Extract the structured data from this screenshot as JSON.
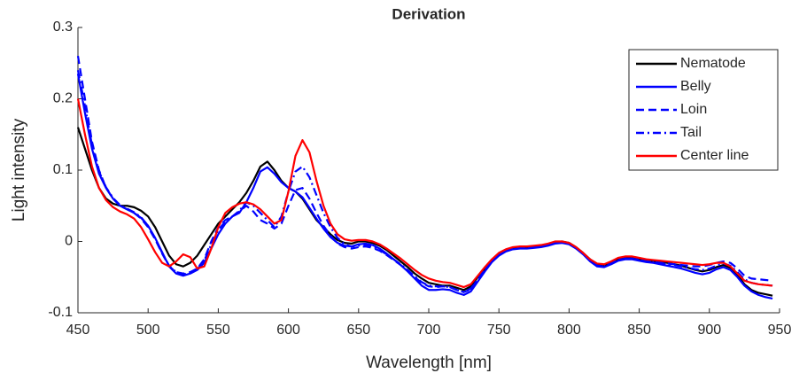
{
  "chart_data": {
    "type": "line",
    "title": "Derivation",
    "x_label": "Wavelength [nm]",
    "y_label": "Light intensity",
    "xlim": [
      450,
      950
    ],
    "xticks": [
      450,
      500,
      550,
      600,
      650,
      700,
      750,
      800,
      850,
      900,
      950
    ],
    "ylim": [
      -0.1,
      0.3
    ],
    "yticks": [
      -0.1,
      0,
      0.1,
      0.2,
      0.3
    ],
    "grid": false,
    "legend": "northeast",
    "x": [
      450,
      455,
      460,
      465,
      470,
      475,
      480,
      485,
      490,
      495,
      500,
      505,
      510,
      515,
      520,
      525,
      530,
      535,
      540,
      545,
      550,
      555,
      560,
      565,
      570,
      575,
      580,
      585,
      590,
      595,
      600,
      605,
      610,
      615,
      620,
      625,
      630,
      635,
      640,
      645,
      650,
      655,
      660,
      665,
      670,
      675,
      680,
      685,
      690,
      695,
      700,
      705,
      710,
      715,
      720,
      725,
      730,
      735,
      740,
      745,
      750,
      755,
      760,
      765,
      770,
      775,
      780,
      785,
      790,
      795,
      800,
      805,
      810,
      815,
      820,
      825,
      830,
      835,
      840,
      845,
      850,
      855,
      860,
      865,
      870,
      875,
      880,
      885,
      890,
      895,
      900,
      905,
      910,
      915,
      920,
      925,
      930,
      935,
      940,
      945
    ],
    "series": [
      {
        "name": "Nematode",
        "color": "#000000",
        "line_style": "solid",
        "values": [
          0.16,
          0.13,
          0.1,
          0.075,
          0.06,
          0.053,
          0.05,
          0.05,
          0.048,
          0.043,
          0.035,
          0.02,
          0.0,
          -0.02,
          -0.032,
          -0.035,
          -0.03,
          -0.02,
          -0.005,
          0.01,
          0.025,
          0.035,
          0.045,
          0.055,
          0.068,
          0.085,
          0.105,
          0.112,
          0.1,
          0.085,
          0.075,
          0.07,
          0.06,
          0.045,
          0.03,
          0.02,
          0.01,
          0.002,
          -0.002,
          -0.003,
          0.0,
          0.0,
          -0.002,
          -0.006,
          -0.012,
          -0.02,
          -0.028,
          -0.036,
          -0.045,
          -0.052,
          -0.058,
          -0.06,
          -0.062,
          -0.062,
          -0.065,
          -0.068,
          -0.063,
          -0.05,
          -0.038,
          -0.027,
          -0.018,
          -0.012,
          -0.009,
          -0.008,
          -0.008,
          -0.007,
          -0.006,
          -0.004,
          -0.001,
          0.0,
          -0.002,
          -0.008,
          -0.016,
          -0.025,
          -0.032,
          -0.034,
          -0.03,
          -0.025,
          -0.023,
          -0.023,
          -0.025,
          -0.027,
          -0.028,
          -0.029,
          -0.03,
          -0.032,
          -0.034,
          -0.037,
          -0.04,
          -0.042,
          -0.04,
          -0.036,
          -0.033,
          -0.037,
          -0.047,
          -0.06,
          -0.068,
          -0.072,
          -0.074,
          -0.076
        ]
      },
      {
        "name": "Belly",
        "color": "#0000ff",
        "line_style": "solid",
        "values": [
          0.235,
          0.18,
          0.13,
          0.095,
          0.075,
          0.06,
          0.05,
          0.045,
          0.04,
          0.033,
          0.022,
          0.005,
          -0.015,
          -0.035,
          -0.045,
          -0.048,
          -0.045,
          -0.04,
          -0.03,
          -0.01,
          0.01,
          0.025,
          0.035,
          0.04,
          0.055,
          0.075,
          0.098,
          0.104,
          0.095,
          0.083,
          0.075,
          0.07,
          0.062,
          0.047,
          0.032,
          0.018,
          0.006,
          -0.002,
          -0.006,
          -0.007,
          -0.004,
          -0.003,
          -0.005,
          -0.01,
          -0.017,
          -0.025,
          -0.033,
          -0.042,
          -0.052,
          -0.062,
          -0.068,
          -0.068,
          -0.067,
          -0.068,
          -0.072,
          -0.075,
          -0.07,
          -0.056,
          -0.042,
          -0.029,
          -0.02,
          -0.014,
          -0.011,
          -0.01,
          -0.01,
          -0.009,
          -0.008,
          -0.006,
          -0.003,
          -0.002,
          -0.004,
          -0.01,
          -0.018,
          -0.028,
          -0.035,
          -0.036,
          -0.032,
          -0.027,
          -0.025,
          -0.025,
          -0.027,
          -0.029,
          -0.03,
          -0.032,
          -0.034,
          -0.036,
          -0.038,
          -0.041,
          -0.044,
          -0.046,
          -0.044,
          -0.039,
          -0.036,
          -0.04,
          -0.05,
          -0.062,
          -0.07,
          -0.075,
          -0.078,
          -0.08
        ]
      },
      {
        "name": "Loin",
        "color": "#0000ff",
        "line_style": "dashed",
        "values": [
          0.26,
          0.2,
          0.14,
          0.1,
          0.075,
          0.06,
          0.05,
          0.045,
          0.04,
          0.032,
          0.02,
          0.003,
          -0.017,
          -0.035,
          -0.043,
          -0.045,
          -0.043,
          -0.038,
          -0.025,
          0.0,
          0.02,
          0.03,
          0.035,
          0.042,
          0.05,
          0.042,
          0.03,
          0.025,
          0.018,
          0.025,
          0.05,
          0.072,
          0.075,
          0.06,
          0.04,
          0.022,
          0.008,
          -0.003,
          -0.008,
          -0.01,
          -0.008,
          -0.007,
          -0.009,
          -0.013,
          -0.019,
          -0.026,
          -0.033,
          -0.041,
          -0.05,
          -0.058,
          -0.063,
          -0.064,
          -0.063,
          -0.064,
          -0.068,
          -0.071,
          -0.067,
          -0.053,
          -0.04,
          -0.028,
          -0.019,
          -0.013,
          -0.01,
          -0.009,
          -0.009,
          -0.008,
          -0.007,
          -0.005,
          -0.002,
          -0.001,
          -0.003,
          -0.009,
          -0.017,
          -0.027,
          -0.034,
          -0.035,
          -0.031,
          -0.026,
          -0.024,
          -0.024,
          -0.026,
          -0.028,
          -0.029,
          -0.03,
          -0.031,
          -0.032,
          -0.033,
          -0.034,
          -0.035,
          -0.035,
          -0.033,
          -0.03,
          -0.028,
          -0.03,
          -0.038,
          -0.048,
          -0.052,
          -0.053,
          -0.054,
          -0.055
        ]
      },
      {
        "name": "Tail",
        "color": "#0000ff",
        "line_style": "dashdot",
        "values": [
          0.24,
          0.19,
          0.135,
          0.098,
          0.076,
          0.061,
          0.051,
          0.046,
          0.041,
          0.034,
          0.022,
          0.004,
          -0.016,
          -0.034,
          -0.043,
          -0.046,
          -0.044,
          -0.039,
          -0.027,
          -0.004,
          0.016,
          0.028,
          0.035,
          0.043,
          0.055,
          0.05,
          0.04,
          0.03,
          0.02,
          0.035,
          0.07,
          0.098,
          0.105,
          0.09,
          0.065,
          0.04,
          0.02,
          0.005,
          -0.004,
          -0.007,
          -0.006,
          -0.005,
          -0.007,
          -0.012,
          -0.018,
          -0.025,
          -0.032,
          -0.04,
          -0.049,
          -0.057,
          -0.062,
          -0.063,
          -0.063,
          -0.064,
          -0.068,
          -0.071,
          -0.066,
          -0.053,
          -0.04,
          -0.028,
          -0.019,
          -0.013,
          -0.01,
          -0.009,
          -0.009,
          -0.008,
          -0.007,
          -0.005,
          -0.002,
          -0.001,
          -0.003,
          -0.009,
          -0.017,
          -0.027,
          -0.034,
          -0.035,
          -0.031,
          -0.026,
          -0.024,
          -0.024,
          -0.026,
          -0.028,
          -0.029,
          -0.03,
          -0.032,
          -0.033,
          -0.035,
          -0.037,
          -0.039,
          -0.04,
          -0.038,
          -0.034,
          -0.031,
          -0.034,
          -0.043,
          -0.053,
          -0.058,
          -0.06,
          -0.061,
          -0.062
        ]
      },
      {
        "name": "Center line",
        "color": "#ff0000",
        "line_style": "solid",
        "values": [
          0.2,
          0.15,
          0.105,
          0.075,
          0.058,
          0.048,
          0.042,
          0.038,
          0.032,
          0.02,
          0.003,
          -0.015,
          -0.03,
          -0.035,
          -0.028,
          -0.018,
          -0.022,
          -0.038,
          -0.035,
          -0.01,
          0.02,
          0.04,
          0.048,
          0.053,
          0.055,
          0.052,
          0.045,
          0.035,
          0.025,
          0.03,
          0.07,
          0.12,
          0.142,
          0.125,
          0.085,
          0.05,
          0.025,
          0.01,
          0.003,
          0.001,
          0.002,
          0.002,
          0.0,
          -0.004,
          -0.01,
          -0.017,
          -0.024,
          -0.032,
          -0.04,
          -0.047,
          -0.052,
          -0.055,
          -0.057,
          -0.058,
          -0.061,
          -0.064,
          -0.06,
          -0.048,
          -0.036,
          -0.025,
          -0.016,
          -0.011,
          -0.008,
          -0.007,
          -0.007,
          -0.006,
          -0.005,
          -0.003,
          0.0,
          0.0,
          -0.002,
          -0.008,
          -0.016,
          -0.025,
          -0.031,
          -0.032,
          -0.028,
          -0.023,
          -0.021,
          -0.021,
          -0.023,
          -0.025,
          -0.026,
          -0.027,
          -0.028,
          -0.029,
          -0.03,
          -0.031,
          -0.032,
          -0.033,
          -0.032,
          -0.03,
          -0.03,
          -0.035,
          -0.045,
          -0.055,
          -0.058,
          -0.06,
          -0.061,
          -0.062
        ]
      }
    ]
  }
}
